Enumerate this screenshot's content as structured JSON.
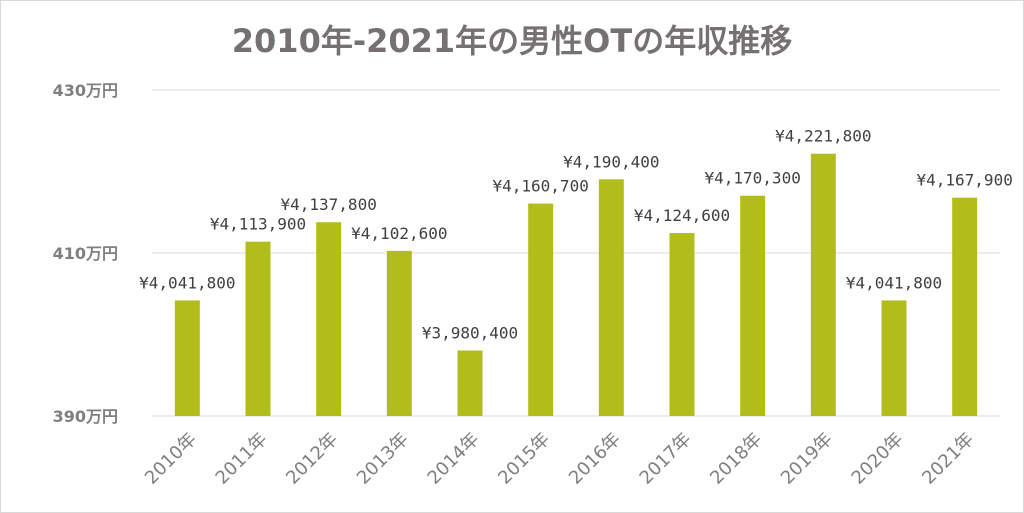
{
  "chart_data": {
    "type": "bar",
    "title": "2010年-2021年の男性OTの年収推移",
    "xlabel": "",
    "ylabel": "",
    "categories": [
      "2010年",
      "2011年",
      "2012年",
      "2013年",
      "2014年",
      "2015年",
      "2016年",
      "2017年",
      "2018年",
      "2019年",
      "2020年",
      "2021年"
    ],
    "values": [
      4041800,
      4113900,
      4137800,
      4102600,
      3980400,
      4160700,
      4190400,
      4124600,
      4170300,
      4221800,
      4041800,
      4167900
    ],
    "data_labels": [
      "¥4,041,800",
      "¥4,113,900",
      "¥4,137,800",
      "¥4,102,600",
      "¥3,980,400",
      "¥4,160,700",
      "¥4,190,400",
      "¥4,124,600",
      "¥4,170,300",
      "¥4,221,800",
      "¥4,041,800",
      "¥4,167,900"
    ],
    "ylim": [
      3900000,
      4300000
    ],
    "yticks": [
      3900000,
      4100000,
      4300000
    ],
    "ytick_labels": [
      "390万円",
      "410万円",
      "430万円"
    ],
    "grid": true,
    "legend": "none",
    "colors": {
      "bar": "#b2bd1c",
      "grid": "#d9d9d9",
      "title": "#767171",
      "tick": "#7f7f7f",
      "data_label": "#404040"
    }
  }
}
